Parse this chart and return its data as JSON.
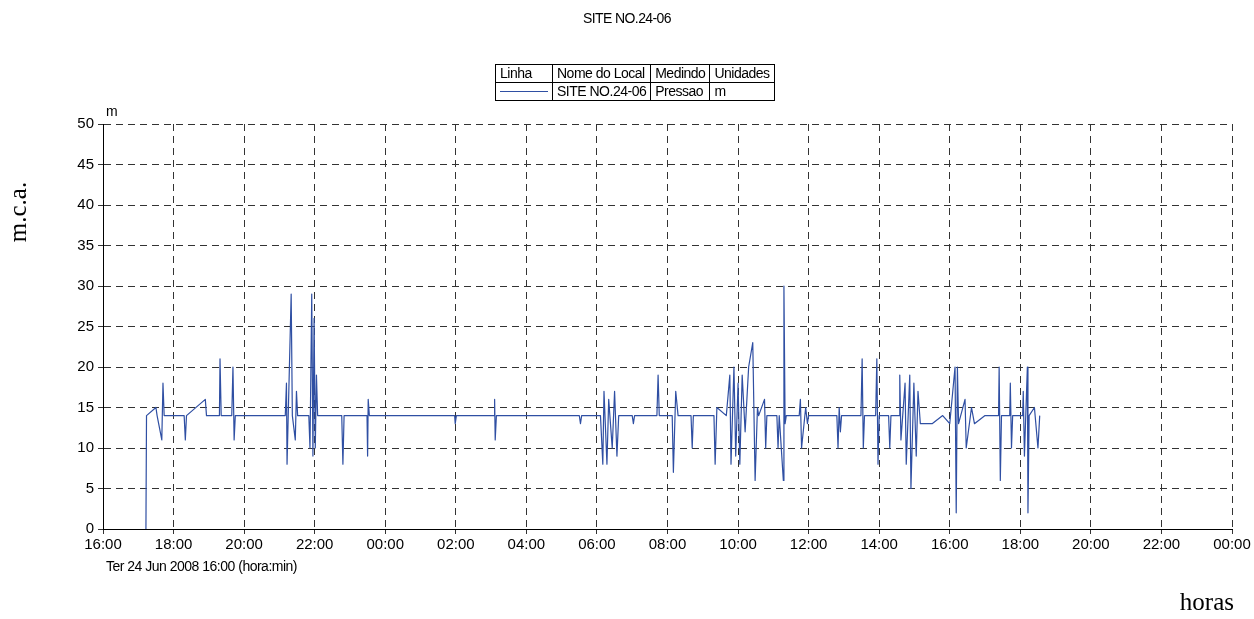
{
  "chart_data": {
    "type": "line",
    "title": "SITE NO.24-06",
    "xlabel": "horas",
    "ylabel": "m.c.a.",
    "annotations": [
      "Linha",
      "Nome do Local",
      "Medindo",
      "Unidades",
      "Pressao",
      "m",
      "m",
      "Ter 24 Jun 2008 16:00 (hora:min)"
    ],
    "legend": "top",
    "grid": true,
    "line_style": "solid",
    "marker": "none",
    "xlim": [
      "2008-06-24T16:00",
      "2008-06-26T00:00"
    ],
    "xticks": [
      {
        "value": "2008-06-24T16:00",
        "label": "16:00"
      },
      {
        "value": "2008-06-24T18:00",
        "label": "18:00"
      },
      {
        "value": "2008-06-24T20:00",
        "label": "20:00"
      },
      {
        "value": "2008-06-24T22:00",
        "label": "22:00"
      },
      {
        "value": "2008-06-25T00:00",
        "label": "00:00"
      },
      {
        "value": "2008-06-25T02:00",
        "label": "02:00"
      },
      {
        "value": "2008-06-25T04:00",
        "label": "04:00"
      },
      {
        "value": "2008-06-25T06:00",
        "label": "06:00"
      },
      {
        "value": "2008-06-25T08:00",
        "label": "08:00"
      },
      {
        "value": "2008-06-25T10:00",
        "label": "10:00"
      },
      {
        "value": "2008-06-25T12:00",
        "label": "12:00"
      },
      {
        "value": "2008-06-25T14:00",
        "label": "14:00"
      },
      {
        "value": "2008-06-25T16:00",
        "label": "16:00"
      },
      {
        "value": "2008-06-25T18:00",
        "label": "18:00"
      },
      {
        "value": "2008-06-25T20:00",
        "label": "20:00"
      },
      {
        "value": "2008-06-25T22:00",
        "label": "22:00"
      },
      {
        "value": "2008-06-26T00:00",
        "label": "00:00"
      }
    ],
    "ylim": [
      0,
      50
    ],
    "yticks": [
      0,
      5,
      10,
      15,
      20,
      25,
      30,
      35,
      40,
      45,
      50
    ],
    "series": [
      {
        "name": "SITE NO.24-06",
        "color": "#2f4fa3",
        "x": [
          "2008-06-24T17:13",
          "2008-06-24T17:14",
          "2008-06-24T17:30",
          "2008-06-24T17:32",
          "2008-06-24T17:40",
          "2008-06-24T17:42",
          "2008-06-24T17:44",
          "2008-06-24T18:18",
          "2008-06-24T18:20",
          "2008-06-24T18:22",
          "2008-06-24T18:54",
          "2008-06-24T18:56",
          "2008-06-24T19:18",
          "2008-06-24T19:19",
          "2008-06-24T19:21",
          "2008-06-24T19:39",
          "2008-06-24T19:41",
          "2008-06-24T19:43",
          "2008-06-24T19:45",
          "2008-06-24T21:10",
          "2008-06-24T21:12",
          "2008-06-24T21:13",
          "2008-06-24T21:20",
          "2008-06-24T21:22",
          "2008-06-24T21:27",
          "2008-06-24T21:29",
          "2008-06-24T21:31",
          "2008-06-24T21:50",
          "2008-06-24T21:52",
          "2008-06-24T21:55",
          "2008-06-24T21:57",
          "2008-06-24T21:59",
          "2008-06-24T22:01",
          "2008-06-24T22:03",
          "2008-06-24T22:05",
          "2008-06-24T22:46",
          "2008-06-24T22:48",
          "2008-06-24T22:50",
          "2008-06-24T23:29",
          "2008-06-24T23:30",
          "2008-06-24T23:31",
          "2008-06-24T23:33",
          "2008-06-25T01:58",
          "2008-06-25T01:59",
          "2008-06-25T02:01",
          "2008-06-25T03:05",
          "2008-06-25T03:06",
          "2008-06-25T03:07",
          "2008-06-25T03:09",
          "2008-06-25T05:30",
          "2008-06-25T05:32",
          "2008-06-25T05:34",
          "2008-06-25T06:06",
          "2008-06-25T06:10",
          "2008-06-25T06:12",
          "2008-06-25T06:17",
          "2008-06-25T06:20",
          "2008-06-25T06:26",
          "2008-06-25T06:30",
          "2008-06-25T06:34",
          "2008-06-25T06:37",
          "2008-06-25T07:00",
          "2008-06-25T07:02",
          "2008-06-25T07:04",
          "2008-06-25T07:42",
          "2008-06-25T07:44",
          "2008-06-25T07:46",
          "2008-06-25T08:08",
          "2008-06-25T08:10",
          "2008-06-25T08:14",
          "2008-06-25T08:18",
          "2008-06-25T08:40",
          "2008-06-25T08:42",
          "2008-06-25T08:44",
          "2008-06-25T09:19",
          "2008-06-25T09:21",
          "2008-06-25T09:24",
          "2008-06-25T09:40",
          "2008-06-25T09:46",
          "2008-06-25T09:48",
          "2008-06-25T09:53",
          "2008-06-25T09:56",
          "2008-06-25T10:00",
          "2008-06-25T10:03",
          "2008-06-25T10:07",
          "2008-06-25T10:12",
          "2008-06-25T10:18",
          "2008-06-25T10:25",
          "2008-06-25T10:29",
          "2008-06-25T10:33",
          "2008-06-25T10:35",
          "2008-06-25T10:45",
          "2008-06-25T10:47",
          "2008-06-25T10:49",
          "2008-06-25T11:06",
          "2008-06-25T11:08",
          "2008-06-25T11:10",
          "2008-06-25T11:17",
          "2008-06-25T11:18",
          "2008-06-25T11:20",
          "2008-06-25T11:22",
          "2008-06-25T11:44",
          "2008-06-25T11:46",
          "2008-06-25T11:48",
          "2008-06-25T11:55",
          "2008-06-25T11:58",
          "2008-06-25T12:00",
          "2008-06-25T12:48",
          "2008-06-25T12:50",
          "2008-06-25T12:52",
          "2008-06-25T12:54",
          "2008-06-25T12:56",
          "2008-06-25T13:29",
          "2008-06-25T13:31",
          "2008-06-25T13:33",
          "2008-06-25T13:35",
          "2008-06-25T13:54",
          "2008-06-25T13:56",
          "2008-06-25T13:58",
          "2008-06-25T14:00",
          "2008-06-25T14:16",
          "2008-06-25T14:18",
          "2008-06-25T14:20",
          "2008-06-25T14:34",
          "2008-06-25T14:35",
          "2008-06-25T14:37",
          "2008-06-25T14:44",
          "2008-06-25T14:46",
          "2008-06-25T14:52",
          "2008-06-25T14:54",
          "2008-06-25T14:59",
          "2008-06-25T15:03",
          "2008-06-25T15:06",
          "2008-06-25T15:10",
          "2008-06-25T15:30",
          "2008-06-25T15:48",
          "2008-06-25T16:00",
          "2008-06-25T16:09",
          "2008-06-25T16:11",
          "2008-06-25T16:13",
          "2008-06-25T16:15",
          "2008-06-25T16:26",
          "2008-06-25T16:28",
          "2008-06-25T16:37",
          "2008-06-25T16:42",
          "2008-06-25T17:00",
          "2008-06-25T17:23",
          "2008-06-25T17:24",
          "2008-06-25T17:26",
          "2008-06-25T17:28",
          "2008-06-25T17:42",
          "2008-06-25T17:43",
          "2008-06-25T17:45",
          "2008-06-25T17:47",
          "2008-06-25T18:04",
          "2008-06-25T18:05",
          "2008-06-25T18:07",
          "2008-06-25T18:12",
          "2008-06-25T18:13",
          "2008-06-25T18:15",
          "2008-06-25T18:24",
          "2008-06-25T18:30",
          "2008-06-25T18:33"
        ],
        "values": [
          0,
          14,
          15,
          14,
          11,
          18,
          14,
          14,
          11,
          14,
          16,
          14,
          14,
          21,
          14,
          14,
          20,
          11,
          14,
          14,
          18,
          8,
          29,
          14,
          11,
          17,
          14,
          14,
          10,
          29,
          9,
          26,
          10,
          19,
          14,
          14,
          8,
          14,
          14,
          9,
          16,
          14,
          14,
          13,
          14,
          14,
          16,
          11,
          14,
          14,
          13,
          14,
          14,
          8,
          17,
          8,
          16,
          10,
          17,
          9,
          14,
          14,
          13,
          14,
          14,
          19,
          14,
          14,
          7,
          17,
          14,
          14,
          10,
          14,
          14,
          8,
          15,
          14,
          19,
          8,
          20,
          9,
          18,
          8,
          19,
          12,
          20,
          23,
          6,
          15,
          14,
          16,
          10,
          14,
          14,
          10,
          14,
          6,
          30,
          13,
          14,
          14,
          16,
          10,
          15,
          13,
          14,
          14,
          10,
          15,
          12,
          14,
          14,
          21,
          10,
          14,
          14,
          21,
          8,
          14,
          14,
          10,
          14,
          14,
          19,
          11,
          18,
          8,
          19,
          5,
          18,
          9,
          17,
          13,
          13,
          14,
          13,
          20,
          2,
          20,
          13,
          16,
          10,
          15,
          13,
          14,
          14,
          20,
          6,
          14,
          14,
          18,
          10,
          14,
          14,
          17,
          9,
          20,
          2,
          14,
          15,
          10,
          14
        ]
      }
    ]
  }
}
